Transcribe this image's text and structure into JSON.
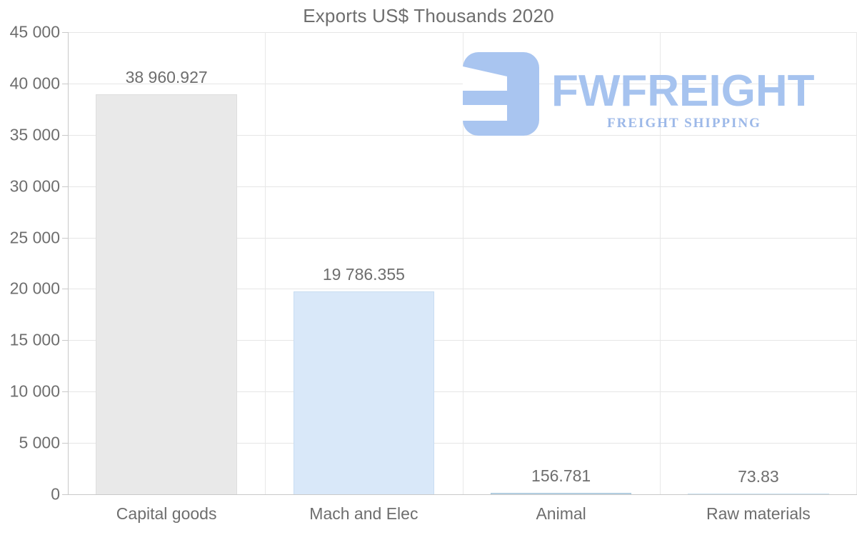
{
  "chart_data": {
    "type": "bar",
    "title": "Exports US$ Thousands 2020",
    "categories": [
      "Capital goods",
      "Mach and Elec",
      "Animal",
      "Raw materials"
    ],
    "values": [
      38960.927,
      19786.355,
      156.781,
      73.83
    ],
    "value_labels": [
      "38 960.927",
      "19 786.355",
      "156.781",
      "73.83"
    ],
    "bar_colors": [
      "#e9e9e9",
      "#d9e8f9",
      "#bdd4e4",
      "#d3e7f2"
    ],
    "bar_border_colors": [
      "#dedede",
      "#c8ddf2",
      "#aac8dc",
      "#c7dfee"
    ],
    "ylim": [
      0,
      45000
    ],
    "yticks": [
      0,
      5000,
      10000,
      15000,
      20000,
      25000,
      30000,
      35000,
      40000,
      45000
    ],
    "ytick_labels": [
      "0",
      "5 000",
      "10 000",
      "15 000",
      "20 000",
      "25 000",
      "30 000",
      "35 000",
      "40 000",
      "45 000"
    ],
    "xlabel": "",
    "ylabel": "",
    "grid": true,
    "legend": "none"
  },
  "logo": {
    "brand": "FWFREIGHT",
    "tagline": "FREIGHT SHIPPING",
    "mark_color": "#a9c5f0",
    "brand_color": "#a6c3ef",
    "tagline_color": "#9cb8e8"
  },
  "colors": {
    "text": "#6e6e6e",
    "gridline": "#e6e6e6",
    "axis": "#c9c9c9",
    "background": "#ffffff"
  }
}
